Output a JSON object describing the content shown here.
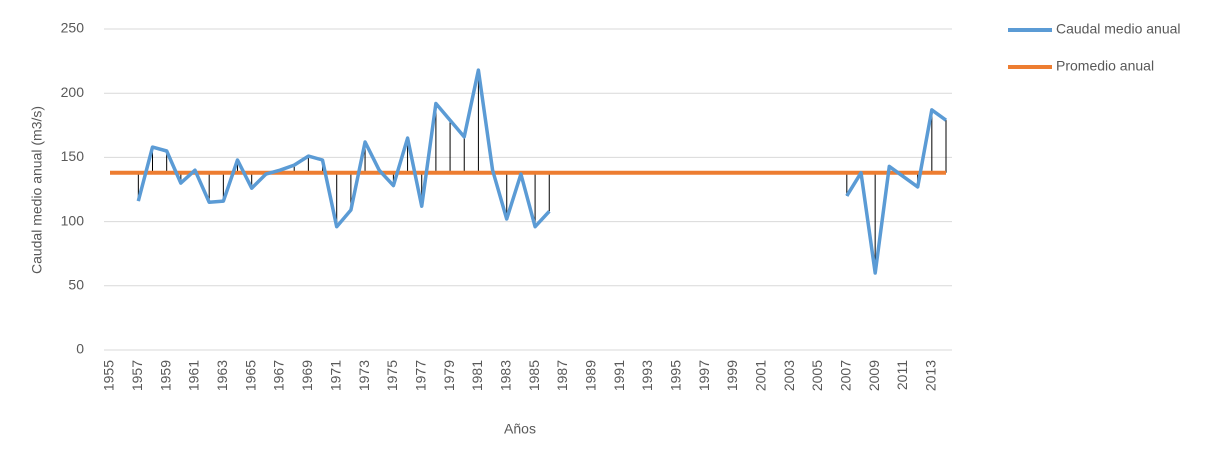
{
  "chart_data": {
    "type": "line",
    "x_label": "Años",
    "y_label": "Caudal medio anual (m3/s)",
    "x": [
      1955,
      1956,
      1957,
      1958,
      1959,
      1960,
      1961,
      1962,
      1963,
      1964,
      1965,
      1966,
      1967,
      1968,
      1969,
      1970,
      1971,
      1972,
      1973,
      1974,
      1975,
      1976,
      1977,
      1978,
      1979,
      1980,
      1981,
      1982,
      1983,
      1984,
      1985,
      1986,
      1987,
      1988,
      1989,
      1990,
      1991,
      1992,
      1993,
      1994,
      1995,
      1996,
      1997,
      1998,
      1999,
      2000,
      2001,
      2002,
      2003,
      2004,
      2005,
      2006,
      2007,
      2008,
      2009,
      2010,
      2011,
      2012,
      2013,
      2014
    ],
    "series": [
      {
        "name": "Caudal medio anual",
        "color": "#5b9bd5",
        "values": [
          null,
          null,
          116,
          158,
          155,
          130,
          140,
          115,
          116,
          148,
          126,
          137,
          140,
          144,
          151,
          148,
          96,
          109,
          162,
          140,
          128,
          165,
          112,
          192,
          179,
          166,
          218,
          140,
          102,
          137,
          96,
          108,
          null,
          null,
          null,
          null,
          null,
          null,
          null,
          null,
          null,
          null,
          null,
          null,
          null,
          null,
          null,
          null,
          null,
          null,
          null,
          null,
          120,
          138,
          60,
          143,
          135,
          127,
          187,
          179
        ]
      },
      {
        "name": "Promedio anual",
        "color": "#ed7d31",
        "values": [
          138,
          138,
          138,
          138,
          138,
          138,
          138,
          138,
          138,
          138,
          138,
          138,
          138,
          138,
          138,
          138,
          138,
          138,
          138,
          138,
          138,
          138,
          138,
          138,
          138,
          138,
          138,
          138,
          138,
          138,
          138,
          138,
          138,
          138,
          138,
          138,
          138,
          138,
          138,
          138,
          138,
          138,
          138,
          138,
          138,
          138,
          138,
          138,
          138,
          138,
          138,
          138,
          138,
          138,
          138,
          138,
          138,
          138,
          138,
          138
        ]
      }
    ],
    "xlim": [
      1955,
      2014
    ],
    "xticks": [
      1955,
      1957,
      1959,
      1961,
      1963,
      1965,
      1967,
      1969,
      1971,
      1973,
      1975,
      1977,
      1979,
      1981,
      1983,
      1985,
      1987,
      1989,
      1991,
      1993,
      1995,
      1997,
      1999,
      2001,
      2003,
      2005,
      2007,
      2009,
      2011,
      2013
    ],
    "ylim": [
      0,
      250
    ],
    "yticks": [
      0,
      50,
      100,
      150,
      200,
      250
    ],
    "grid": true,
    "drop_lines": true,
    "legend": "right"
  }
}
